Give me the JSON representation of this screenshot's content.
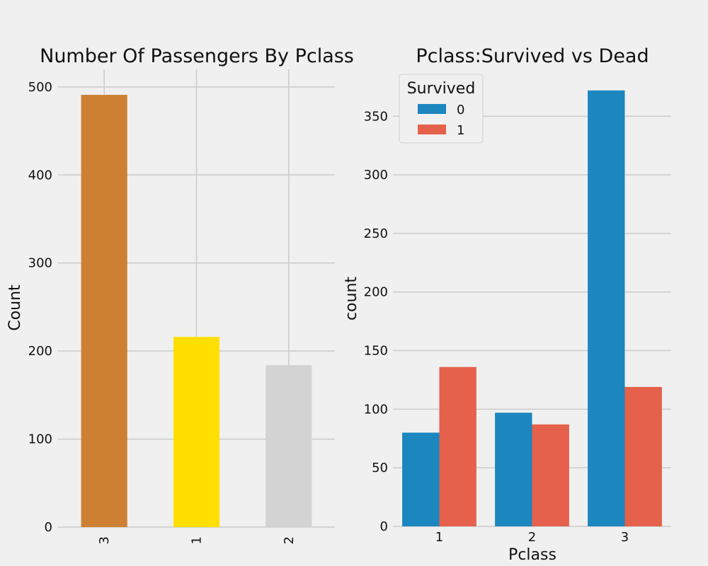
{
  "colors": {
    "background": "#f0f0f0",
    "grid": "#cbcbcb"
  },
  "chart_data": [
    {
      "type": "bar",
      "title": "Number Of Passengers By Pclass",
      "xlabel": "",
      "ylabel": "Count",
      "categories": [
        "3",
        "1",
        "2"
      ],
      "values": [
        491,
        216,
        184
      ],
      "bar_colors": [
        "#cd7f32",
        "#ffdf00",
        "#d3d3d3"
      ],
      "ylim": [
        0,
        520
      ],
      "yticks": [
        0,
        100,
        200,
        300,
        400,
        500
      ],
      "xtick_rotation": "vertical",
      "grid": true,
      "legend": null
    },
    {
      "type": "bar",
      "title": "Pclass:Survived vs Dead",
      "xlabel": "Pclass",
      "ylabel": "count",
      "categories": [
        "1",
        "2",
        "3"
      ],
      "series": [
        {
          "name": "0",
          "values": [
            80,
            97,
            372
          ],
          "color": "#1c86bf"
        },
        {
          "name": "1",
          "values": [
            136,
            87,
            119
          ],
          "color": "#e5614b"
        }
      ],
      "legend_title": "Survived",
      "legend_position": "top-left",
      "ylim": [
        0,
        390
      ],
      "yticks": [
        0,
        50,
        100,
        150,
        200,
        250,
        300,
        350
      ],
      "grid": true
    }
  ]
}
